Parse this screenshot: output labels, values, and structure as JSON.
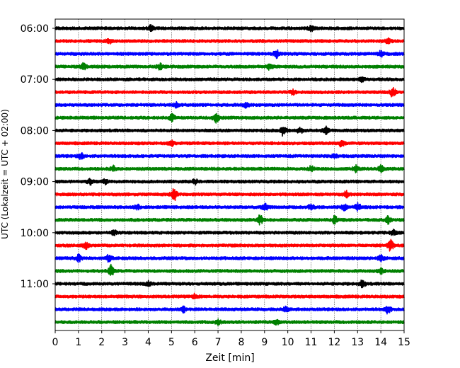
{
  "chart_data": {
    "type": "line",
    "title": "",
    "xlabel": "Zeit  [min]",
    "ylabel": "UTC (Lokalzeit = UTC + 02:00)",
    "xlim": [
      0,
      15
    ],
    "x_ticks": [
      "0",
      "1",
      "2",
      "3",
      "4",
      "5",
      "6",
      "7",
      "8",
      "9",
      "10",
      "11",
      "12",
      "13",
      "14",
      "15"
    ],
    "y_ticks": [
      "06:00",
      "07:00",
      "08:00",
      "09:00",
      "10:00",
      "11:00"
    ],
    "grid": "vertical dotted",
    "trace_interval_min": 15,
    "color_cycle": [
      "#000000",
      "#ff0000",
      "#0000ff",
      "#008000"
    ],
    "series": [
      {
        "start": "06:00",
        "color": "#000000",
        "events": [
          {
            "t": 4.1,
            "amp": 1.5
          },
          {
            "t": 11.0,
            "amp": 1.4
          }
        ]
      },
      {
        "start": "06:15",
        "color": "#ff0000",
        "events": [
          {
            "t": 2.3,
            "amp": 1.4
          },
          {
            "t": 14.3,
            "amp": 1.5
          }
        ]
      },
      {
        "start": "06:30",
        "color": "#0000ff",
        "events": [
          {
            "t": 9.5,
            "amp": 2.5
          },
          {
            "t": 14.0,
            "amp": 1.5
          }
        ]
      },
      {
        "start": "06:45",
        "color": "#008000",
        "events": [
          {
            "t": 1.2,
            "amp": 2.0
          },
          {
            "t": 4.5,
            "amp": 1.6
          },
          {
            "t": 9.2,
            "amp": 1.5
          }
        ]
      },
      {
        "start": "07:00",
        "color": "#000000",
        "events": [
          {
            "t": 13.2,
            "amp": 1.3
          }
        ]
      },
      {
        "start": "07:15",
        "color": "#ff0000",
        "events": [
          {
            "t": 14.5,
            "amp": 2.5
          },
          {
            "t": 10.2,
            "amp": 1.3
          }
        ]
      },
      {
        "start": "07:30",
        "color": "#0000ff",
        "events": [
          {
            "t": 5.2,
            "amp": 1.4
          },
          {
            "t": 8.2,
            "amp": 1.3
          }
        ]
      },
      {
        "start": "07:45",
        "color": "#008000",
        "events": [
          {
            "t": 5.0,
            "amp": 2.0
          },
          {
            "t": 6.9,
            "amp": 2.8
          }
        ]
      },
      {
        "start": "08:00",
        "color": "#000000",
        "events": [
          {
            "t": 9.8,
            "amp": 3.0
          },
          {
            "t": 10.5,
            "amp": 1.8
          },
          {
            "t": 11.6,
            "amp": 2.6
          }
        ]
      },
      {
        "start": "08:15",
        "color": "#ff0000",
        "events": [
          {
            "t": 5.0,
            "amp": 1.5
          },
          {
            "t": 12.3,
            "amp": 1.7
          }
        ]
      },
      {
        "start": "08:30",
        "color": "#0000ff",
        "events": [
          {
            "t": 1.1,
            "amp": 1.6
          },
          {
            "t": 12.0,
            "amp": 1.3
          }
        ]
      },
      {
        "start": "08:45",
        "color": "#008000",
        "events": [
          {
            "t": 2.5,
            "amp": 1.6
          },
          {
            "t": 11.0,
            "amp": 1.5
          },
          {
            "t": 12.9,
            "amp": 2.0
          },
          {
            "t": 14.0,
            "amp": 2.1
          }
        ]
      },
      {
        "start": "09:00",
        "color": "#000000",
        "events": [
          {
            "t": 1.5,
            "amp": 1.7
          },
          {
            "t": 2.1,
            "amp": 1.6
          },
          {
            "t": 6.0,
            "amp": 1.6
          }
        ]
      },
      {
        "start": "09:15",
        "color": "#ff0000",
        "events": [
          {
            "t": 5.1,
            "amp": 4.0
          },
          {
            "t": 12.5,
            "amp": 2.1
          }
        ]
      },
      {
        "start": "09:30",
        "color": "#0000ff",
        "events": [
          {
            "t": 3.5,
            "amp": 1.5
          },
          {
            "t": 9.0,
            "amp": 2.2
          },
          {
            "t": 11.0,
            "amp": 2.0
          },
          {
            "t": 12.4,
            "amp": 2.0
          },
          {
            "t": 13.0,
            "amp": 2.2
          }
        ]
      },
      {
        "start": "09:45",
        "color": "#008000",
        "events": [
          {
            "t": 8.8,
            "amp": 2.8
          },
          {
            "t": 12.0,
            "amp": 2.2
          },
          {
            "t": 14.3,
            "amp": 2.0
          }
        ]
      },
      {
        "start": "10:00",
        "color": "#000000",
        "events": [
          {
            "t": 2.5,
            "amp": 1.4
          },
          {
            "t": 14.5,
            "amp": 1.6
          }
        ]
      },
      {
        "start": "10:15",
        "color": "#ff0000",
        "events": [
          {
            "t": 1.3,
            "amp": 2.0
          },
          {
            "t": 14.4,
            "amp": 3.5
          }
        ]
      },
      {
        "start": "10:30",
        "color": "#0000ff",
        "events": [
          {
            "t": 1.0,
            "amp": 2.0
          },
          {
            "t": 2.3,
            "amp": 1.8
          },
          {
            "t": 14.0,
            "amp": 1.8
          }
        ]
      },
      {
        "start": "10:45",
        "color": "#008000",
        "events": [
          {
            "t": 2.4,
            "amp": 3.5
          },
          {
            "t": 14.0,
            "amp": 1.5
          }
        ]
      },
      {
        "start": "11:00",
        "color": "#000000",
        "events": [
          {
            "t": 4.0,
            "amp": 1.3
          },
          {
            "t": 13.2,
            "amp": 2.0
          }
        ]
      },
      {
        "start": "11:15",
        "color": "#ff0000",
        "events": [
          {
            "t": 6.0,
            "amp": 1.3
          }
        ]
      },
      {
        "start": "11:30",
        "color": "#0000ff",
        "events": [
          {
            "t": 5.5,
            "amp": 1.5
          },
          {
            "t": 9.9,
            "amp": 1.4
          },
          {
            "t": 14.3,
            "amp": 2.3
          }
        ]
      },
      {
        "start": "11:45",
        "color": "#008000",
        "events": [
          {
            "t": 7.0,
            "amp": 1.5
          },
          {
            "t": 9.5,
            "amp": 1.3
          }
        ]
      }
    ]
  }
}
